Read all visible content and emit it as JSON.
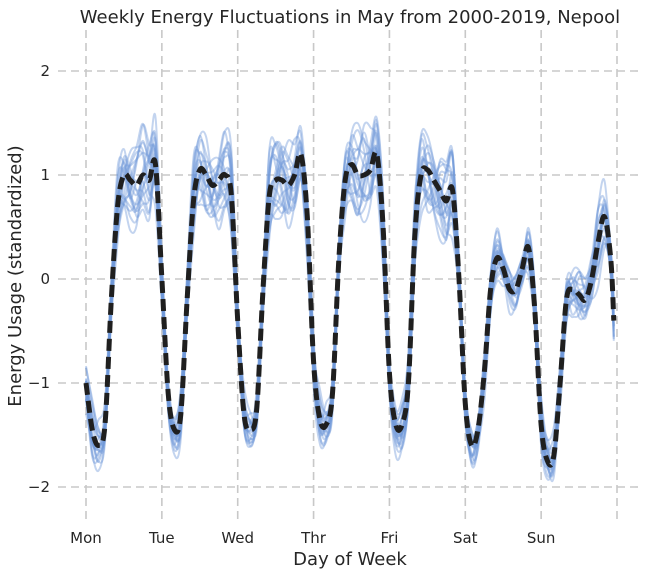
{
  "chart_data": {
    "type": "line",
    "title": "Weekly Energy Fluctuations in May from 2000-2019, Nepool",
    "xlabel": "Day of Week",
    "ylabel": "Energy Usage (standardized)",
    "x_tick_labels": [
      "Mon",
      "Tue",
      "Wed",
      "Thr",
      "Fri",
      "Sat",
      "Sun"
    ],
    "y_ticks": [
      -2,
      -1,
      0,
      1,
      2
    ],
    "y_tick_labels": [
      "−2",
      "−1",
      "0",
      "1",
      "2"
    ],
    "ylim": [
      -2.3,
      2.4
    ],
    "xlim": [
      0,
      7.2
    ],
    "grid": true,
    "legend": "none",
    "colors": {
      "years": "#6f98d8",
      "mean": "#1f1f1f"
    },
    "mean_profile": {
      "description_hours": "hourly values across the week, hour 0 = Mon 00:00",
      "x_hours": [
        0,
        2,
        4,
        6,
        8,
        10,
        12,
        14,
        16,
        18,
        20,
        22,
        24,
        26,
        28,
        30,
        32,
        34,
        36,
        38,
        40,
        42,
        44,
        46,
        48,
        50,
        52,
        54,
        56,
        58,
        60,
        62,
        64,
        66,
        68,
        70,
        72,
        74,
        76,
        78,
        80,
        82,
        84,
        86,
        88,
        90,
        92,
        94,
        96,
        98,
        100,
        102,
        104,
        106,
        108,
        110,
        112,
        114,
        116,
        118,
        120,
        122,
        124,
        126,
        128,
        130,
        132,
        134,
        136,
        138,
        140,
        142,
        144,
        146,
        148,
        150,
        152,
        154,
        156,
        158,
        160,
        162,
        164,
        166,
        167
      ],
      "y": [
        -1.0,
        -1.45,
        -1.6,
        -1.4,
        -0.2,
        0.7,
        1.0,
        0.95,
        0.9,
        1.0,
        0.95,
        1.1,
        0.0,
        -1.1,
        -1.45,
        -1.3,
        -0.2,
        0.75,
        1.05,
        1.0,
        0.9,
        0.95,
        1.0,
        0.8,
        -0.4,
        -1.3,
        -1.45,
        -1.25,
        -0.1,
        0.8,
        0.95,
        0.95,
        0.9,
        1.0,
        1.2,
        0.6,
        -0.8,
        -1.35,
        -1.4,
        -1.1,
        0.2,
        0.95,
        1.1,
        1.0,
        1.0,
        1.05,
        1.2,
        0.5,
        -0.9,
        -1.4,
        -1.4,
        -1.0,
        0.4,
        1.0,
        1.05,
        0.95,
        0.85,
        0.75,
        0.85,
        0.0,
        -1.2,
        -1.6,
        -1.45,
        -0.9,
        -0.1,
        0.2,
        0.1,
        -0.1,
        -0.1,
        0.1,
        0.3,
        -0.3,
        -1.4,
        -1.75,
        -1.7,
        -1.0,
        -0.2,
        -0.1,
        -0.15,
        -0.2,
        0.0,
        0.35,
        0.6,
        0.2,
        -0.4
      ]
    },
    "series_count": 20
  }
}
